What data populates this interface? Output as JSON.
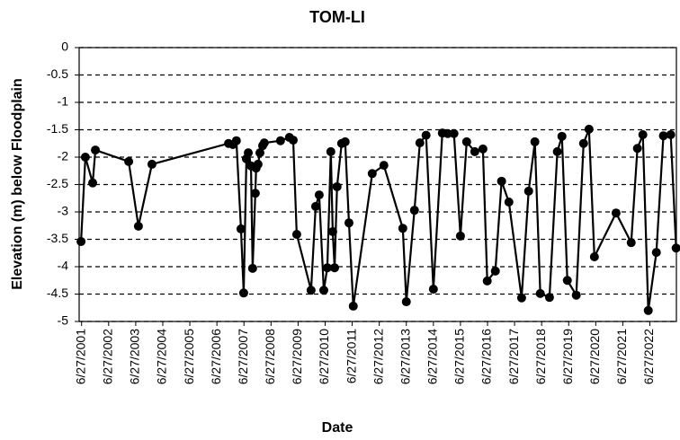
{
  "chart_data": {
    "type": "line",
    "title": "TOM-LI",
    "x_label": "Date",
    "y_label": "Elevation (m) below Floodplain",
    "x": [
      2001.47,
      2001.63,
      2001.9,
      2002.0,
      2003.23,
      2003.59,
      2004.09,
      2006.92,
      2007.08,
      2007.21,
      2007.38,
      2007.48,
      2007.58,
      2007.65,
      2007.75,
      2007.81,
      2007.91,
      2007.94,
      2008.01,
      2008.08,
      2008.18,
      2008.24,
      2008.84,
      2009.17,
      2009.31,
      2009.44,
      2009.97,
      2010.14,
      2010.27,
      2010.44,
      2010.57,
      2010.7,
      2010.77,
      2010.84,
      2010.93,
      2011.1,
      2011.23,
      2011.37,
      2011.53,
      2012.23,
      2012.66,
      2013.36,
      2013.49,
      2013.79,
      2013.99,
      2014.22,
      2014.49,
      2014.82,
      2015.02,
      2015.25,
      2015.49,
      2015.72,
      2016.02,
      2016.32,
      2016.48,
      2016.78,
      2017.01,
      2017.28,
      2017.75,
      2018.01,
      2018.24,
      2018.44,
      2018.78,
      2019.07,
      2019.24,
      2019.44,
      2019.77,
      2020.04,
      2020.24,
      2020.44,
      2021.24,
      2021.8,
      2022.03,
      2022.23,
      2022.43,
      2022.73,
      2022.99,
      2023.26,
      2023.46
    ],
    "series": [
      {
        "name": "TOM-LI",
        "color": "#000000",
        "values": [
          -3.54,
          -2.0,
          -2.47,
          -1.87,
          -2.08,
          -3.26,
          -2.13,
          -1.75,
          -1.77,
          -1.7,
          -3.31,
          -4.48,
          -2.03,
          -1.92,
          -2.16,
          -4.03,
          -2.66,
          -2.2,
          -2.13,
          -1.92,
          -1.79,
          -1.74,
          -1.7,
          -1.64,
          -1.69,
          -3.41,
          -4.43,
          -2.9,
          -2.69,
          -4.43,
          -4.02,
          -1.9,
          -3.36,
          -4.02,
          -2.54,
          -1.75,
          -1.72,
          -3.2,
          -4.72,
          -2.3,
          -2.15,
          -3.3,
          -4.64,
          -2.97,
          -1.74,
          -1.6,
          -4.41,
          -1.56,
          -1.57,
          -1.57,
          -3.44,
          -1.72,
          -1.9,
          -1.85,
          -4.26,
          -4.08,
          -2.44,
          -2.82,
          -4.57,
          -2.62,
          -1.72,
          -4.49,
          -4.56,
          -1.9,
          -1.62,
          -4.25,
          -4.52,
          -1.75,
          -1.49,
          -3.82,
          -3.02,
          -3.56,
          -1.84,
          -1.59,
          -4.8,
          -3.74,
          -1.61,
          -1.59,
          -3.66
        ]
      }
    ],
    "xlim": [
      2001.4,
      2023.47
    ],
    "xticks": [
      {
        "value": 2001.49,
        "label": "6/27/2001"
      },
      {
        "value": 2002.49,
        "label": "6/27/2002"
      },
      {
        "value": 2003.49,
        "label": "6/27/2003"
      },
      {
        "value": 2004.49,
        "label": "6/27/2004"
      },
      {
        "value": 2005.49,
        "label": "6/27/2005"
      },
      {
        "value": 2006.49,
        "label": "6/27/2006"
      },
      {
        "value": 2007.49,
        "label": "6/27/2007"
      },
      {
        "value": 2008.49,
        "label": "6/27/2008"
      },
      {
        "value": 2009.49,
        "label": "6/27/2009"
      },
      {
        "value": 2010.49,
        "label": "6/27/2010"
      },
      {
        "value": 2011.49,
        "label": "6/27/2011"
      },
      {
        "value": 2012.49,
        "label": "6/27/2012"
      },
      {
        "value": 2013.49,
        "label": "6/27/2013"
      },
      {
        "value": 2014.49,
        "label": "6/27/2014"
      },
      {
        "value": 2015.49,
        "label": "6/27/2015"
      },
      {
        "value": 2016.49,
        "label": "6/27/2016"
      },
      {
        "value": 2017.49,
        "label": "6/27/2017"
      },
      {
        "value": 2018.49,
        "label": "6/27/2018"
      },
      {
        "value": 2019.49,
        "label": "6/27/2019"
      },
      {
        "value": 2020.49,
        "label": "6/27/2020"
      },
      {
        "value": 2021.49,
        "label": "6/27/2021"
      },
      {
        "value": 2022.49,
        "label": "6/27/2022"
      }
    ],
    "ylim": [
      -5,
      0
    ],
    "yticks": [
      0,
      -0.5,
      -1,
      -1.5,
      -2,
      -2.5,
      -3,
      -3.5,
      -4,
      -4.5,
      -5
    ],
    "grid": true
  }
}
